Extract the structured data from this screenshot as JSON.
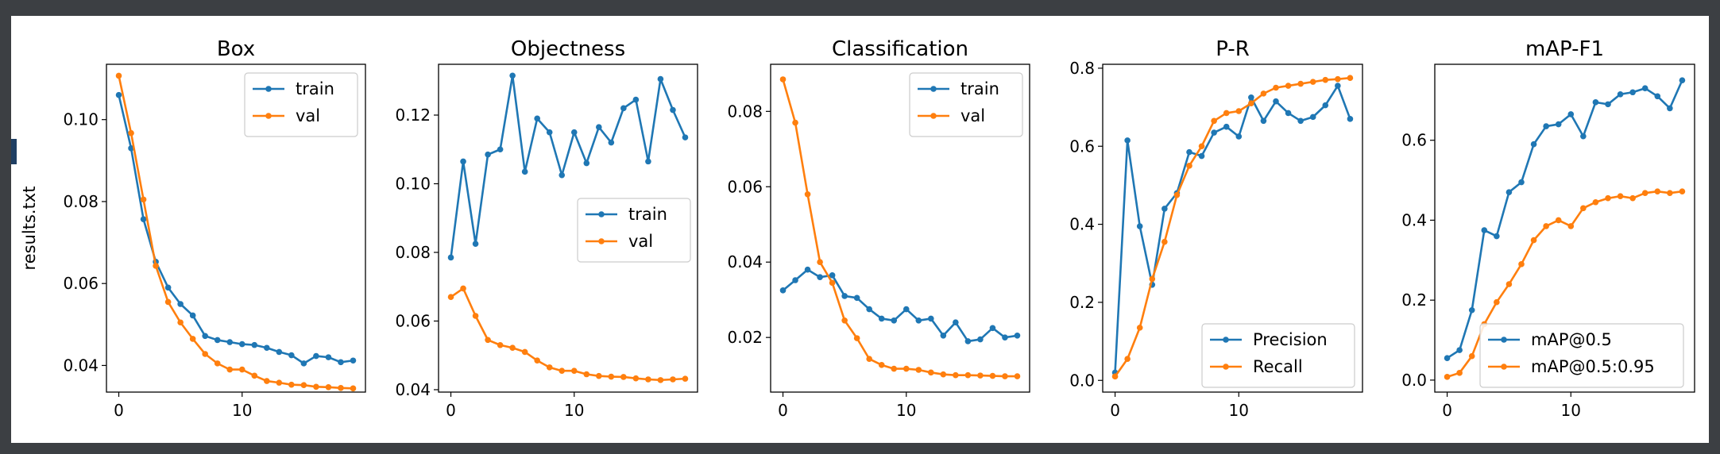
{
  "figure": {
    "ylabel": "results.txt"
  },
  "chart_data": [
    {
      "type": "line",
      "title": "Box",
      "xlabel": "",
      "ylabel": "results.txt",
      "xlim": [
        -1.0,
        20.0
      ],
      "ylim": [
        0.0335,
        0.1135
      ],
      "xticks": [
        0,
        10
      ],
      "yticks": [
        0.04,
        0.06,
        0.08,
        0.1
      ],
      "ytick_labels": [
        "0.04",
        "0.06",
        "0.08",
        "0.10"
      ],
      "legend": "upper-right",
      "x": [
        0,
        1,
        2,
        3,
        4,
        5,
        6,
        7,
        8,
        9,
        10,
        11,
        12,
        13,
        14,
        15,
        16,
        17,
        18,
        19
      ],
      "series": [
        {
          "name": "train",
          "color": "#1f77b4",
          "values": [
            0.106,
            0.093,
            0.0757,
            0.0653,
            0.059,
            0.055,
            0.0522,
            0.0472,
            0.0462,
            0.0457,
            0.0452,
            0.045,
            0.0443,
            0.0433,
            0.0425,
            0.0405,
            0.0423,
            0.042,
            0.0408,
            0.0412
          ]
        },
        {
          "name": "val",
          "color": "#ff7f0e",
          "values": [
            0.1107,
            0.0967,
            0.0805,
            0.0643,
            0.0555,
            0.0505,
            0.0465,
            0.0428,
            0.0405,
            0.039,
            0.039,
            0.0375,
            0.0362,
            0.0358,
            0.0353,
            0.0352,
            0.0348,
            0.0347,
            0.0345,
            0.0344
          ]
        }
      ]
    },
    {
      "type": "line",
      "title": "Objectness",
      "xlabel": "",
      "ylabel": "",
      "xlim": [
        -1.0,
        20.0
      ],
      "ylim": [
        0.0393,
        0.1348
      ],
      "xticks": [
        0,
        10
      ],
      "yticks": [
        0.04,
        0.06,
        0.08,
        0.1,
        0.12
      ],
      "ytick_labels": [
        "0.04",
        "0.06",
        "0.08",
        "0.10",
        "0.12"
      ],
      "legend": "center-right",
      "x": [
        0,
        1,
        2,
        3,
        4,
        5,
        6,
        7,
        8,
        9,
        10,
        11,
        12,
        13,
        14,
        15,
        16,
        17,
        18,
        19
      ],
      "series": [
        {
          "name": "train",
          "color": "#1f77b4",
          "values": [
            0.0785,
            0.1065,
            0.0825,
            0.1085,
            0.11,
            0.1315,
            0.1035,
            0.119,
            0.115,
            0.1025,
            0.115,
            0.106,
            0.1165,
            0.112,
            0.122,
            0.1245,
            0.1065,
            0.1305,
            0.1215,
            0.1135
          ]
        },
        {
          "name": "val",
          "color": "#ff7f0e",
          "values": [
            0.067,
            0.0695,
            0.0615,
            0.0545,
            0.053,
            0.0522,
            0.051,
            0.0485,
            0.0465,
            0.0455,
            0.0455,
            0.0445,
            0.044,
            0.0438,
            0.0437,
            0.0433,
            0.043,
            0.0428,
            0.043,
            0.0432
          ]
        }
      ]
    },
    {
      "type": "line",
      "title": "Classification",
      "xlabel": "",
      "ylabel": "",
      "xlim": [
        -1.0,
        20.0
      ],
      "ylim": [
        0.0055,
        0.0925
      ],
      "xticks": [
        0,
        10
      ],
      "yticks": [
        0.02,
        0.04,
        0.06,
        0.08
      ],
      "ytick_labels": [
        "0.02",
        "0.04",
        "0.06",
        "0.08"
      ],
      "legend": "upper-right",
      "x": [
        0,
        1,
        2,
        3,
        4,
        5,
        6,
        7,
        8,
        9,
        10,
        11,
        12,
        13,
        14,
        15,
        16,
        17,
        18,
        19
      ],
      "series": [
        {
          "name": "train",
          "color": "#1f77b4",
          "values": [
            0.0325,
            0.0352,
            0.038,
            0.036,
            0.0365,
            0.031,
            0.0305,
            0.0275,
            0.025,
            0.0245,
            0.0275,
            0.0245,
            0.025,
            0.0205,
            0.024,
            0.019,
            0.0195,
            0.0225,
            0.02,
            0.0205
          ]
        },
        {
          "name": "val",
          "color": "#ff7f0e",
          "values": [
            0.0885,
            0.077,
            0.058,
            0.04,
            0.0345,
            0.0245,
            0.0198,
            0.0143,
            0.0127,
            0.0117,
            0.0117,
            0.0114,
            0.0107,
            0.0102,
            0.01,
            0.01,
            0.0099,
            0.0098,
            0.0097,
            0.0097
          ]
        }
      ]
    },
    {
      "type": "line",
      "title": "P-R",
      "xlabel": "",
      "ylabel": "",
      "xlim": [
        -1.0,
        20.0
      ],
      "ylim": [
        -0.03,
        0.81
      ],
      "xticks": [
        0,
        10
      ],
      "yticks": [
        0.0,
        0.2,
        0.4,
        0.6,
        0.8
      ],
      "ytick_labels": [
        "0.0",
        "0.2",
        "0.4",
        "0.6",
        "0.8"
      ],
      "legend": "lower-right",
      "x": [
        0,
        1,
        2,
        3,
        4,
        5,
        6,
        7,
        8,
        9,
        10,
        11,
        12,
        13,
        14,
        15,
        16,
        17,
        18,
        19
      ],
      "series": [
        {
          "name": "Precision",
          "color": "#1f77b4",
          "values": [
            0.02,
            0.615,
            0.395,
            0.245,
            0.44,
            0.48,
            0.585,
            0.575,
            0.635,
            0.65,
            0.625,
            0.725,
            0.665,
            0.715,
            0.685,
            0.665,
            0.675,
            0.705,
            0.755,
            0.67
          ]
        },
        {
          "name": "Recall",
          "color": "#ff7f0e",
          "values": [
            0.01,
            0.055,
            0.135,
            0.26,
            0.355,
            0.475,
            0.55,
            0.6,
            0.665,
            0.685,
            0.69,
            0.71,
            0.735,
            0.75,
            0.755,
            0.76,
            0.765,
            0.77,
            0.772,
            0.775
          ]
        }
      ]
    },
    {
      "type": "line",
      "title": "mAP-F1",
      "xlabel": "",
      "ylabel": "",
      "xlim": [
        -1.0,
        20.0
      ],
      "ylim": [
        -0.03,
        0.79
      ],
      "xticks": [
        0,
        10
      ],
      "yticks": [
        0.0,
        0.2,
        0.4,
        0.6
      ],
      "ytick_labels": [
        "0.0",
        "0.2",
        "0.4",
        "0.6"
      ],
      "legend": "lower-right",
      "x": [
        0,
        1,
        2,
        3,
        4,
        5,
        6,
        7,
        8,
        9,
        10,
        11,
        12,
        13,
        14,
        15,
        16,
        17,
        18,
        19
      ],
      "series": [
        {
          "name": "mAP@0.5",
          "color": "#1f77b4",
          "values": [
            0.055,
            0.075,
            0.175,
            0.375,
            0.36,
            0.47,
            0.495,
            0.59,
            0.635,
            0.64,
            0.665,
            0.61,
            0.695,
            0.69,
            0.715,
            0.72,
            0.73,
            0.71,
            0.68,
            0.75
          ]
        },
        {
          "name": "mAP@0.5:0.95",
          "color": "#ff7f0e",
          "values": [
            0.008,
            0.018,
            0.06,
            0.14,
            0.195,
            0.24,
            0.29,
            0.35,
            0.385,
            0.4,
            0.385,
            0.43,
            0.445,
            0.455,
            0.46,
            0.455,
            0.468,
            0.472,
            0.468,
            0.472
          ]
        }
      ]
    }
  ]
}
